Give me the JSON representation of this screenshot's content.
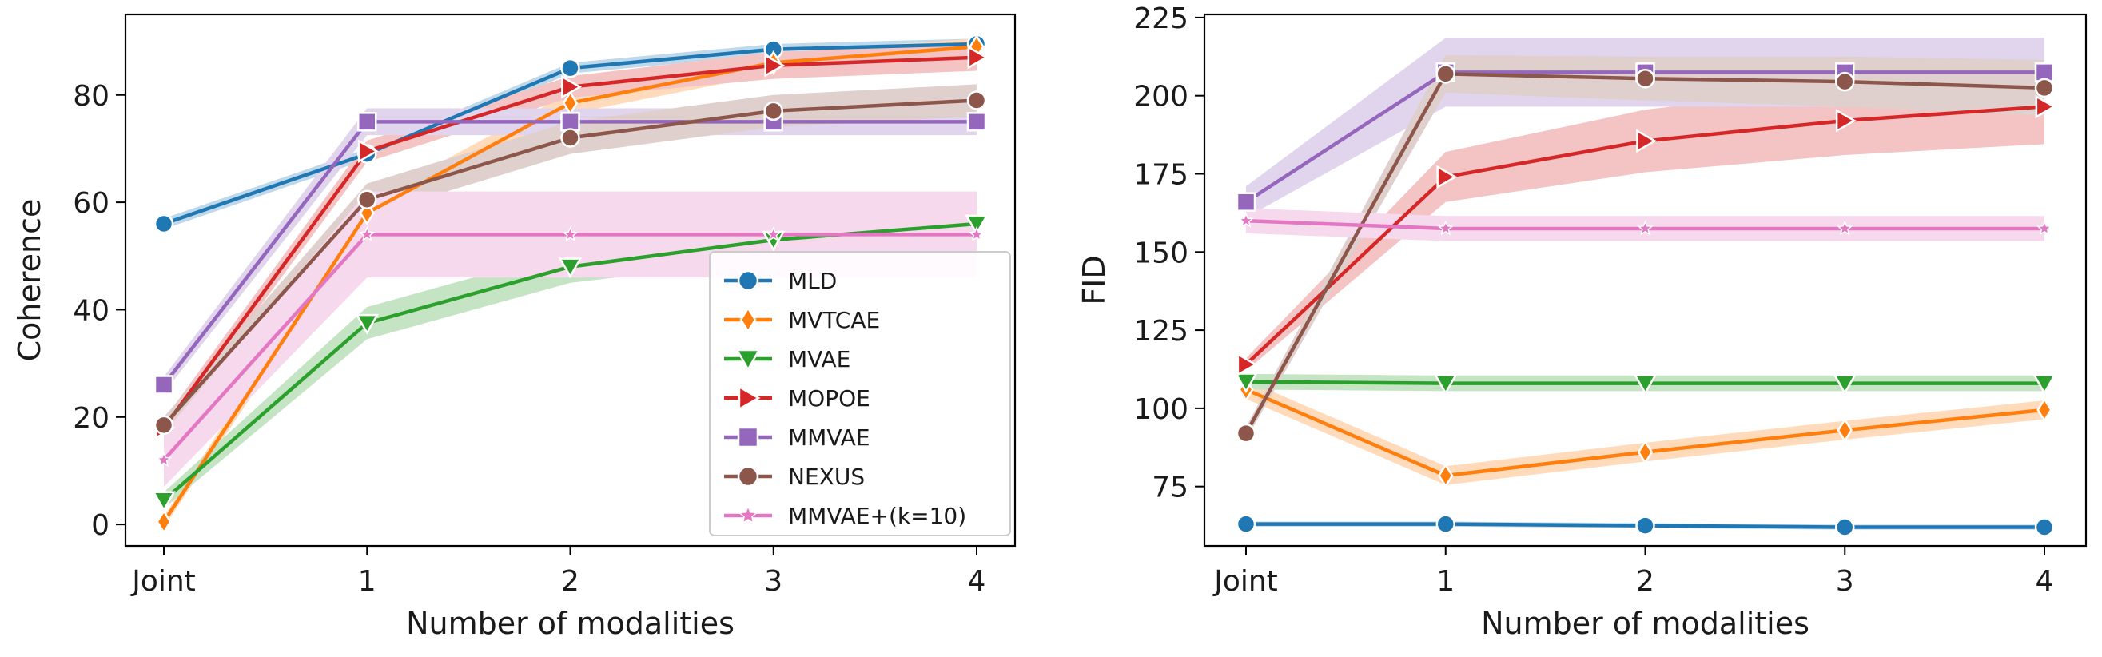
{
  "chart_data": [
    {
      "type": "line",
      "xlabel": "Number of modalities",
      "ylabel": "Coherence",
      "categories": [
        "Joint",
        "1",
        "2",
        "3",
        "4"
      ],
      "ylim": [
        -4,
        95
      ],
      "yticks": [
        0,
        20,
        40,
        60,
        80
      ],
      "legend": "lower-right",
      "series": [
        {
          "name": "MLD",
          "color": "#1f77b4",
          "marker": "circle",
          "values": [
            56,
            69,
            85,
            88.5,
            89.5
          ],
          "band": [
            1,
            1,
            1,
            1,
            1
          ]
        },
        {
          "name": "MVTCAE",
          "color": "#ff7f0e",
          "marker": "diamond",
          "values": [
            0.5,
            58,
            78.5,
            86,
            89
          ],
          "band": [
            1,
            2,
            2,
            2,
            1.5
          ]
        },
        {
          "name": "MVAE",
          "color": "#2ca02c",
          "marker": "triangle-down",
          "values": [
            4.5,
            37.5,
            48,
            53,
            56
          ],
          "band": [
            1.5,
            3,
            3,
            3.5,
            3.5
          ]
        },
        {
          "name": "MOPOE",
          "color": "#d62728",
          "marker": "triangle-right",
          "values": [
            18,
            69.5,
            81.5,
            85.5,
            87
          ],
          "band": [
            1.5,
            2,
            2,
            2.5,
            2.5
          ]
        },
        {
          "name": "MMVAE",
          "color": "#9467bd",
          "marker": "square",
          "values": [
            26,
            75,
            75,
            75,
            75
          ],
          "band": [
            1.5,
            2.5,
            2.5,
            2.5,
            2.5
          ]
        },
        {
          "name": "NEXUS",
          "color": "#8c564b",
          "marker": "circle",
          "values": [
            18.5,
            60.5,
            72,
            77,
            79
          ],
          "band": [
            1.5,
            3,
            3,
            3,
            3
          ]
        },
        {
          "name": "MMVAE+(k=10)",
          "color": "#e377c2",
          "marker": "star",
          "values": [
            12,
            54,
            54,
            54,
            54
          ],
          "band": [
            5,
            8,
            8,
            8,
            8
          ]
        }
      ]
    },
    {
      "type": "line",
      "xlabel": "Number of modalities",
      "ylabel": "FID",
      "categories": [
        "Joint",
        "1",
        "2",
        "3",
        "4"
      ],
      "ylim": [
        56,
        226
      ],
      "yticks": [
        75,
        100,
        125,
        150,
        175,
        200,
        225
      ],
      "series": [
        {
          "name": "MLD",
          "color": "#1f77b4",
          "marker": "circle",
          "values": [
            63,
            63,
            62.5,
            62,
            62
          ],
          "band": [
            0.8,
            0.8,
            0.8,
            0.8,
            0.8
          ]
        },
        {
          "name": "MVTCAE",
          "color": "#ff7f0e",
          "marker": "diamond",
          "values": [
            106,
            78.5,
            86,
            93,
            99.5
          ],
          "band": [
            3,
            3,
            3,
            3,
            3
          ]
        },
        {
          "name": "MVAE",
          "color": "#2ca02c",
          "marker": "triangle-down",
          "values": [
            108.5,
            108,
            108,
            108,
            108
          ],
          "band": [
            2.5,
            2.5,
            2.5,
            2.5,
            2.5
          ]
        },
        {
          "name": "MOPOE",
          "color": "#d62728",
          "marker": "triangle-right",
          "values": [
            114,
            174,
            185.5,
            192,
            196.5
          ],
          "band": [
            2,
            8,
            10,
            11,
            12
          ]
        },
        {
          "name": "MMVAE",
          "color": "#9467bd",
          "marker": "square",
          "values": [
            166,
            207.5,
            207.5,
            207.5,
            207.5
          ],
          "band": [
            5,
            11,
            11,
            11,
            11
          ]
        },
        {
          "name": "NEXUS",
          "color": "#8c564b",
          "marker": "circle",
          "values": [
            92,
            207,
            205.5,
            204.5,
            202.5
          ],
          "band": [
            2,
            6,
            7,
            8,
            9
          ]
        },
        {
          "name": "MMVAE+(k=10)",
          "color": "#e377c2",
          "marker": "star",
          "values": [
            160,
            157.5,
            157.5,
            157.5,
            157.5
          ],
          "band": [
            4,
            4,
            4,
            4,
            4
          ]
        }
      ]
    }
  ]
}
